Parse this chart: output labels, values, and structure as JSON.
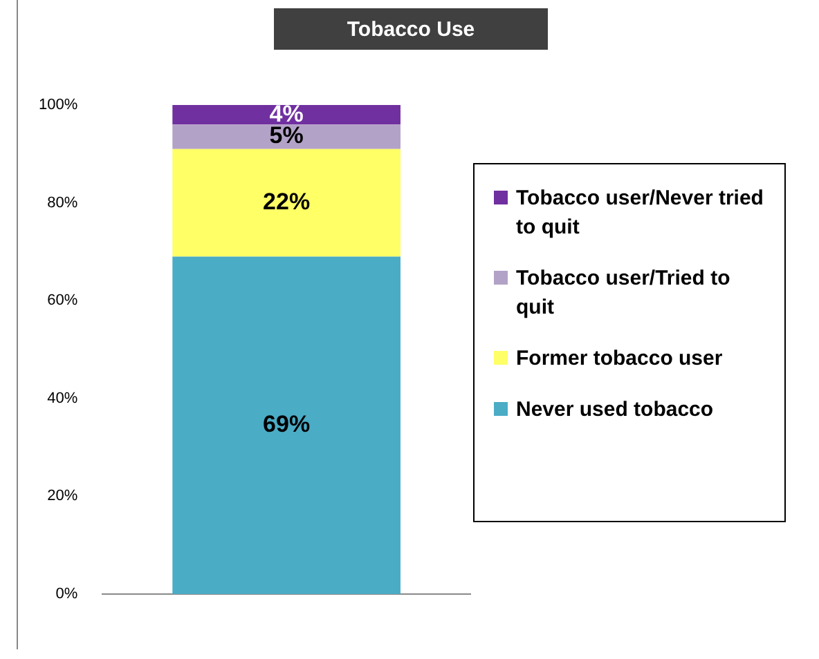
{
  "chart_data": {
    "type": "bar",
    "title": "Tobacco Use",
    "categories": [
      null
    ],
    "stacked": true,
    "legend": "right",
    "grid": false,
    "ylim": [
      0,
      100
    ],
    "yticks": [
      {
        "value": 0,
        "label": "0%"
      },
      {
        "value": 20,
        "label": "20%"
      },
      {
        "value": 40,
        "label": "40%"
      },
      {
        "value": 60,
        "label": "60%"
      },
      {
        "value": 80,
        "label": "80%"
      },
      {
        "value": 100,
        "label": "100%"
      }
    ],
    "series": [
      {
        "name": "Never used tobacco",
        "color": "#4bacc6",
        "values": [
          69
        ],
        "value_labels": [
          "69%"
        ]
      },
      {
        "name": "Former tobacco user",
        "color": "#ffff66",
        "values": [
          22
        ],
        "value_labels": [
          "22%"
        ]
      },
      {
        "name": "Tobacco user/Tried to quit",
        "color": "#b3a2c7",
        "values": [
          5
        ],
        "value_labels": [
          "5%"
        ]
      },
      {
        "name": "Tobacco user/Never tried to quit",
        "color": "#7030a0",
        "values": [
          4
        ],
        "value_labels": [
          "4%"
        ]
      }
    ]
  }
}
